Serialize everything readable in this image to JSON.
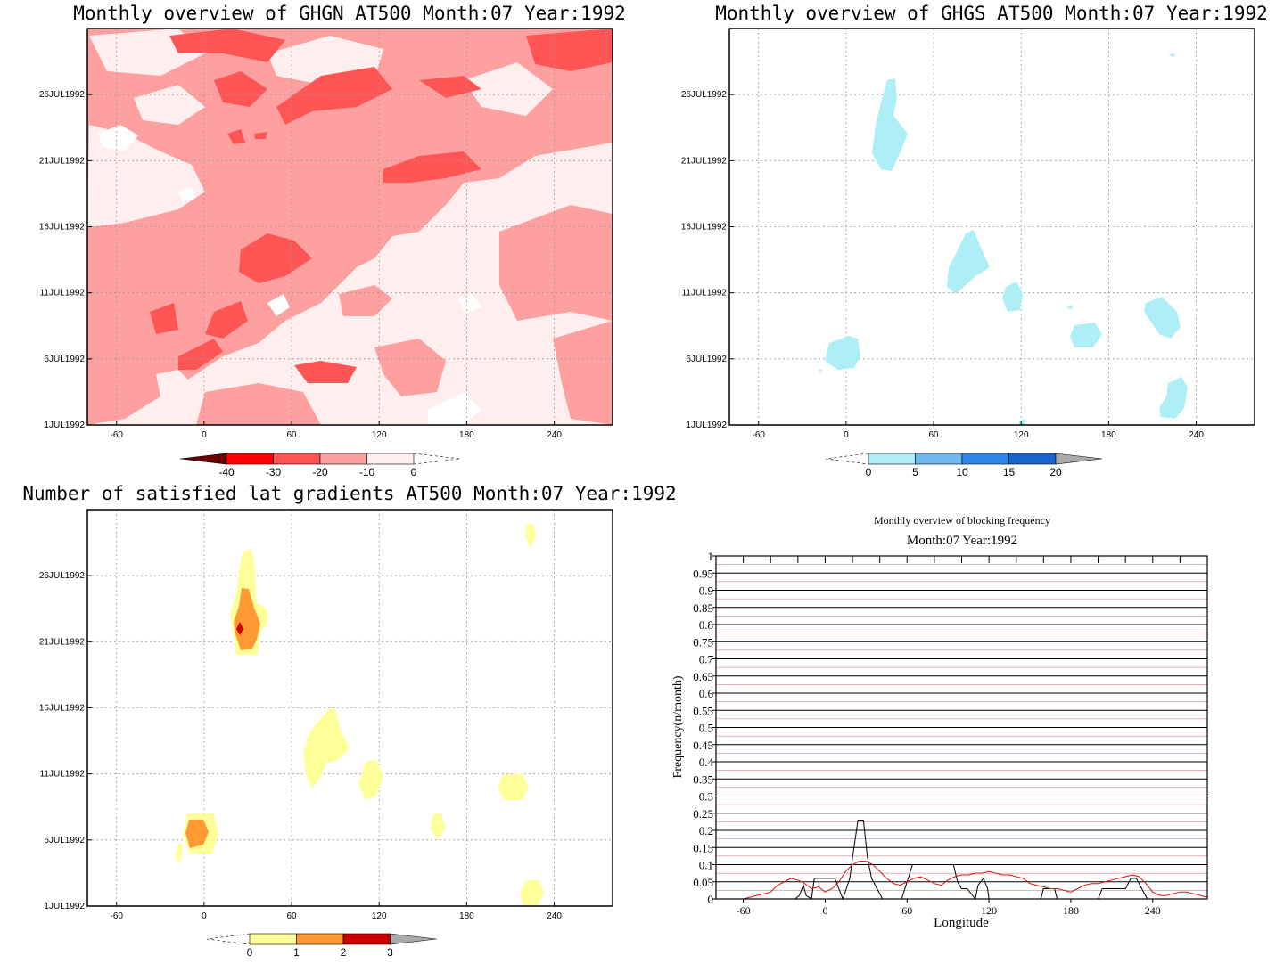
{
  "chart_data": [
    {
      "type": "heatmap",
      "title": "Monthly overview of GHGN AT500 Month:07 Year:1992",
      "x_ticks": [
        "-60",
        "0",
        "60",
        "120",
        "180",
        "240"
      ],
      "y_ticks": [
        "1JUL1992",
        "6JUL1992",
        "11JUL1992",
        "16JUL1992",
        "21JUL1992",
        "26JUL1992"
      ],
      "xlim": [
        -80,
        280
      ],
      "grid": true,
      "colorbar": {
        "labels": [
          "-40",
          "-30",
          "-20",
          "-10",
          "0"
        ],
        "colors": [
          "#ffeeee",
          "#ffa0a0",
          "#ff5555",
          "#ee0000",
          "#ff0000",
          "#6b0000"
        ]
      }
    },
    {
      "type": "heatmap",
      "title": "Monthly overview of GHGS AT500 Month:07 Year:1992",
      "x_ticks": [
        "-60",
        "0",
        "60",
        "120",
        "180",
        "240"
      ],
      "y_ticks": [
        "1JUL1992",
        "6JUL1992",
        "11JUL1992",
        "16JUL1992",
        "21JUL1992",
        "26JUL1992"
      ],
      "xlim": [
        -80,
        280
      ],
      "grid": true,
      "colorbar": {
        "labels": [
          "0",
          "5",
          "10",
          "15",
          "20"
        ],
        "colors": [
          "#aeeef6",
          "#70b8f0",
          "#2d86ec",
          "#1865d0",
          "#aaaaaa"
        ]
      }
    },
    {
      "type": "heatmap",
      "title": "Number of satisfied lat gradients AT500 Month:07 Year:1992",
      "x_ticks": [
        "-60",
        "0",
        "60",
        "120",
        "180",
        "240"
      ],
      "y_ticks": [
        "1JUL1992",
        "6JUL1992",
        "11JUL1992",
        "16JUL1992",
        "21JUL1992",
        "26JUL1992"
      ],
      "xlim": [
        -80,
        280
      ],
      "grid": true,
      "colorbar": {
        "labels": [
          "0",
          "1",
          "2",
          "3"
        ],
        "colors": [
          "#ffff99",
          "#ff9933",
          "#cc0000",
          "#aaaaaa"
        ]
      }
    },
    {
      "type": "line",
      "title": "Monthly overview of blocking frequency",
      "subtitle": "Month:07 Year:1992",
      "xlabel": "Longitude",
      "ylabel": "Frequency(n/month)",
      "xlim": [
        -80,
        280
      ],
      "ylim": [
        0,
        1
      ],
      "x_ticks": [
        -60,
        0,
        60,
        120,
        180,
        240
      ],
      "y_ticks": [
        "0",
        "0.05",
        "0.1",
        "0.15",
        "0.2",
        "0.25",
        "0.3",
        "0.35",
        "0.4",
        "0.45",
        "0.5",
        "0.55",
        "0.6",
        "0.65",
        "0.7",
        "0.75",
        "0.8",
        "0.85",
        "0.9",
        "0.95",
        "1"
      ],
      "series": [
        {
          "color": "#000000",
          "x": [
            -22,
            -19,
            -16,
            -14,
            -10,
            -8,
            0,
            5,
            7,
            10,
            13,
            18,
            20,
            24,
            28,
            31,
            34,
            38,
            42,
            45,
            56,
            64,
            70,
            78,
            94,
            97,
            100,
            104,
            110,
            112,
            116,
            119,
            120,
            128,
            158,
            160,
            165,
            168,
            170,
            175,
            200,
            203,
            207,
            215,
            220,
            224,
            228,
            232,
            236
          ],
          "y": [
            0,
            0.01,
            0.04,
            0.01,
            0,
            0.06,
            0.06,
            0.06,
            0.06,
            0.03,
            0,
            0.06,
            0.12,
            0.23,
            0.23,
            0.12,
            0.06,
            0.03,
            0,
            0,
            0,
            0.1,
            0.1,
            0.1,
            0.1,
            0.05,
            0.03,
            0.03,
            0,
            0.04,
            0.06,
            0.03,
            0,
            0,
            0,
            0.03,
            0.03,
            0.03,
            0,
            0,
            0,
            0.03,
            0.03,
            0.03,
            0.03,
            0.06,
            0.06,
            0.03,
            0
          ]
        },
        {
          "color": "#dd1111",
          "x": [
            -80,
            -60,
            -50,
            -40,
            -35,
            -30,
            -25,
            -20,
            -15,
            -10,
            -5,
            0,
            5,
            10,
            15,
            20,
            25,
            30,
            35,
            40,
            45,
            50,
            55,
            60,
            65,
            70,
            75,
            80,
            85,
            90,
            95,
            100,
            105,
            110,
            115,
            120,
            125,
            130,
            135,
            140,
            145,
            150,
            155,
            160,
            165,
            170,
            175,
            180,
            185,
            190,
            195,
            200,
            205,
            210,
            215,
            220,
            225,
            230,
            235,
            240,
            245,
            250,
            255,
            260,
            265,
            270,
            275,
            280
          ],
          "y": [
            0,
            0,
            0.01,
            0.02,
            0.04,
            0.05,
            0.06,
            0.055,
            0.045,
            0.03,
            0.035,
            0.02,
            0.03,
            0.05,
            0.08,
            0.1,
            0.11,
            0.11,
            0.1,
            0.08,
            0.06,
            0.045,
            0.04,
            0.05,
            0.06,
            0.065,
            0.055,
            0.045,
            0.04,
            0.055,
            0.065,
            0.07,
            0.07,
            0.075,
            0.075,
            0.08,
            0.075,
            0.07,
            0.07,
            0.065,
            0.06,
            0.045,
            0.04,
            0.035,
            0.03,
            0.03,
            0.025,
            0.02,
            0.03,
            0.04,
            0.045,
            0.045,
            0.05,
            0.055,
            0.06,
            0.065,
            0.07,
            0.065,
            0.045,
            0.02,
            0.01,
            0.01,
            0.015,
            0.02,
            0.02,
            0.015,
            0.01,
            0.005
          ]
        }
      ]
    }
  ]
}
